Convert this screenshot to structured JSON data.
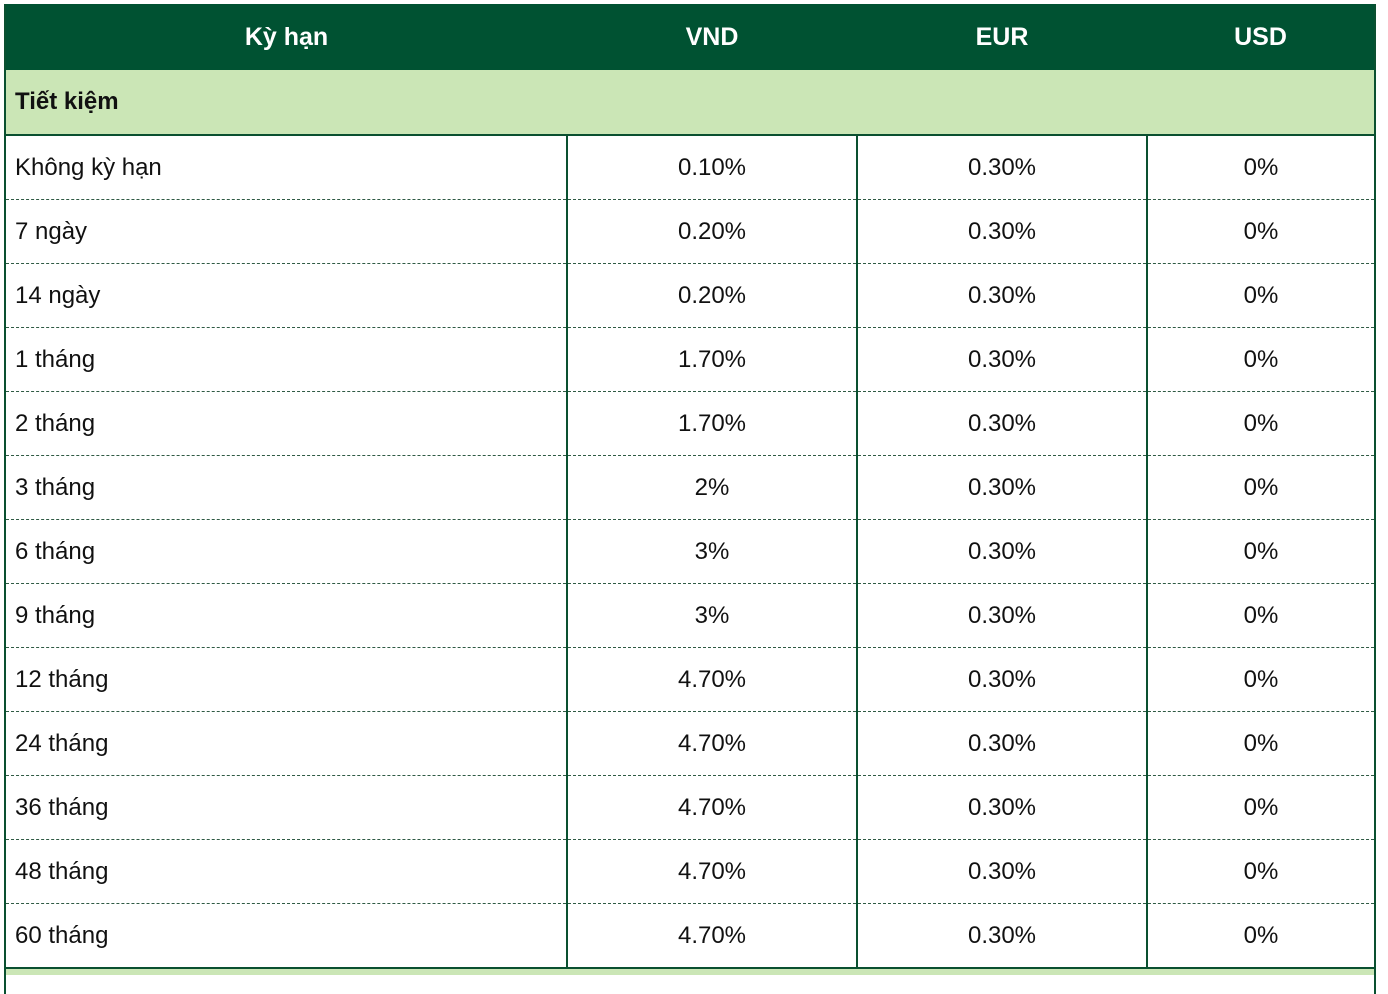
{
  "table": {
    "headers": [
      "Kỳ hạn",
      "VND",
      "EUR",
      "USD"
    ],
    "group_label": "Tiết kiệm",
    "rows": [
      {
        "term": "Không kỳ hạn",
        "vnd": "0.10%",
        "eur": "0.30%",
        "usd": "0%"
      },
      {
        "term": "7 ngày",
        "vnd": "0.20%",
        "eur": "0.30%",
        "usd": "0%"
      },
      {
        "term": "14 ngày",
        "vnd": "0.20%",
        "eur": "0.30%",
        "usd": "0%"
      },
      {
        "term": "1 tháng",
        "vnd": "1.70%",
        "eur": "0.30%",
        "usd": "0%"
      },
      {
        "term": "2 tháng",
        "vnd": "1.70%",
        "eur": "0.30%",
        "usd": "0%"
      },
      {
        "term": "3 tháng",
        "vnd": "2%",
        "eur": "0.30%",
        "usd": "0%"
      },
      {
        "term": "6 tháng",
        "vnd": "3%",
        "eur": "0.30%",
        "usd": "0%"
      },
      {
        "term": "9 tháng",
        "vnd": "3%",
        "eur": "0.30%",
        "usd": "0%"
      },
      {
        "term": "12 tháng",
        "vnd": "4.70%",
        "eur": "0.30%",
        "usd": "0%"
      },
      {
        "term": "24 tháng",
        "vnd": "4.70%",
        "eur": "0.30%",
        "usd": "0%"
      },
      {
        "term": "36 tháng",
        "vnd": "4.70%",
        "eur": "0.30%",
        "usd": "0%"
      },
      {
        "term": "48 tháng",
        "vnd": "4.70%",
        "eur": "0.30%",
        "usd": "0%"
      },
      {
        "term": "60 tháng",
        "vnd": "4.70%",
        "eur": "0.30%",
        "usd": "0%"
      }
    ]
  },
  "colors": {
    "header_bg": "#005232",
    "group_bg": "#cbe6b6",
    "border": "#0a5030"
  }
}
